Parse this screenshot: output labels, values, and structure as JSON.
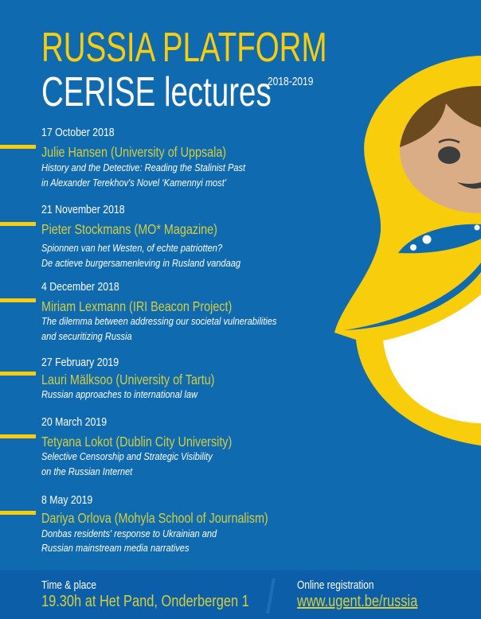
{
  "header": {
    "title": "RUSSIA PLATFORM",
    "subtitle": "CERISE lectures",
    "years": "2018-2019"
  },
  "colors": {
    "background": "#106ab0",
    "footer": "#0c5ea8",
    "accent_yellow": "#f8cd0c",
    "speaker_text": "#d3cf40"
  },
  "lectures": [
    {
      "date": "17 October 2018",
      "speaker": "Julie Hansen (University of Uppsala)",
      "desc": [
        "History and the Detective: Reading the Stalinist Past",
        "in Alexander Terekhov's Novel ‘Kamennyi most’"
      ]
    },
    {
      "date": "21 November 2018",
      "speaker": "Pieter Stockmans (MO* Magazine)",
      "desc": [
        "Spionnen van het Westen, of echte patriotten?",
        "De actieve burgersamenleving in Rusland vandaag"
      ]
    },
    {
      "date": "4 December 2018",
      "speaker": "Miriam Lexmann (IRI Beacon Project)",
      "desc": [
        "The dilemma between addressing our societal vulnerabilities",
        "and securitizing Russia"
      ]
    },
    {
      "date": "27 February 2019",
      "speaker": "Lauri Mälksoo (University of Tartu)",
      "desc": [
        "Russian approaches to international law"
      ]
    },
    {
      "date": "20 March 2019",
      "speaker": "Tetyana Lokot (Dublin City University)",
      "desc": [
        "Selective Censorship and Strategic Visibility",
        "on the Russian Internet"
      ]
    },
    {
      "date": "8 May 2019",
      "speaker": "Dariya Orlova (Mohyla School of Journalism)",
      "desc": [
        "Donbas residents' response to Ukrainian and",
        "Russian mainstream media narratives"
      ]
    }
  ],
  "footer": {
    "time_label": "Time & place",
    "time_value": "19.30h at Het Pand, Onderbergen 1",
    "reg_label": "Online registration",
    "reg_link": "www.ugent.be/russia"
  }
}
